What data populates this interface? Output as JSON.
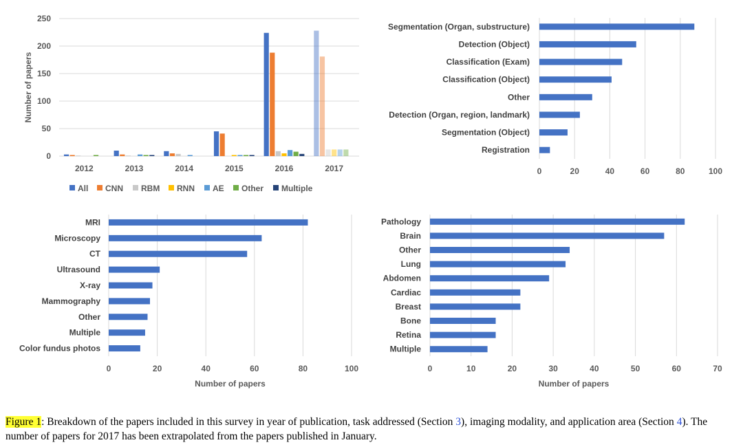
{
  "chart_data": [
    {
      "id": "year",
      "type": "bar",
      "categories": [
        "2012",
        "2013",
        "2014",
        "2015",
        "2016",
        "2017"
      ],
      "ylabel": "Number of papers",
      "ylim": [
        0,
        250
      ],
      "yticks": [
        0,
        50,
        100,
        150,
        200,
        250
      ],
      "grid": true,
      "legend_position": "bottom",
      "series": [
        {
          "name": "All",
          "color": "#4472c4",
          "values": [
            3,
            10,
            9,
            45,
            224,
            228
          ]
        },
        {
          "name": "CNN",
          "color": "#ed7d31",
          "values": [
            2,
            3,
            5,
            41,
            188,
            181
          ]
        },
        {
          "name": "RBM",
          "color": "#c9c9c9",
          "values": [
            1,
            1,
            4,
            0,
            9,
            12
          ]
        },
        {
          "name": "RNN",
          "color": "#ffc000",
          "values": [
            0,
            0,
            0,
            2,
            5,
            12
          ]
        },
        {
          "name": "AE",
          "color": "#5b9bd5",
          "values": [
            0,
            3,
            2,
            2,
            11,
            12
          ]
        },
        {
          "name": "Other",
          "color": "#70ad47",
          "values": [
            2,
            2,
            0,
            2,
            8,
            12
          ]
        },
        {
          "name": "Multiple",
          "color": "#264478",
          "values": [
            0,
            2,
            0,
            2,
            4,
            0
          ]
        }
      ]
    },
    {
      "id": "task",
      "type": "bar",
      "orientation": "horizontal",
      "color": "#4472c4",
      "categories": [
        "Segmentation (Organ, substructure)",
        "Detection (Object)",
        "Classification (Exam)",
        "Classification (Object)",
        "Other",
        "Detection (Organ, region, landmark)",
        "Segmentation (Object)",
        "Registration"
      ],
      "values": [
        88,
        55,
        47,
        41,
        30,
        23,
        16,
        6
      ],
      "xlim": [
        0,
        100
      ],
      "xticks": [
        0,
        20,
        40,
        60,
        80,
        100
      ],
      "grid": true
    },
    {
      "id": "modality",
      "type": "bar",
      "orientation": "horizontal",
      "color": "#4472c4",
      "categories": [
        "MRI",
        "Microscopy",
        "CT",
        "Ultrasound",
        "X-ray",
        "Mammography",
        "Other",
        "Multiple",
        "Color fundus photos"
      ],
      "values": [
        82,
        63,
        57,
        21,
        18,
        17,
        16,
        15,
        13
      ],
      "xlabel": "Number of papers",
      "xlim": [
        0,
        100
      ],
      "xticks": [
        0,
        20,
        40,
        60,
        80,
        100
      ],
      "grid": true
    },
    {
      "id": "area",
      "type": "bar",
      "orientation": "horizontal",
      "color": "#4472c4",
      "categories": [
        "Pathology",
        "Brain",
        "Other",
        "Lung",
        "Abdomen",
        "Cardiac",
        "Breast",
        "Bone",
        "Retina",
        "Multiple"
      ],
      "values": [
        62,
        57,
        34,
        33,
        29,
        22,
        22,
        16,
        16,
        14
      ],
      "xlabel": "Number of papers",
      "xlim": [
        0,
        70
      ],
      "xticks": [
        0,
        10,
        20,
        30,
        40,
        50,
        60,
        70
      ],
      "grid": true
    }
  ],
  "caption": {
    "figure_label": "Figure 1",
    "text_1": ": Breakdown of the papers included in this survey in year of publication, task addressed (Section ",
    "ref_1": "3",
    "text_2": "), imaging modality, and application area (Section ",
    "ref_2": "4",
    "text_3": "). The number of papers for 2017 has been extrapolated from the papers published in January."
  }
}
